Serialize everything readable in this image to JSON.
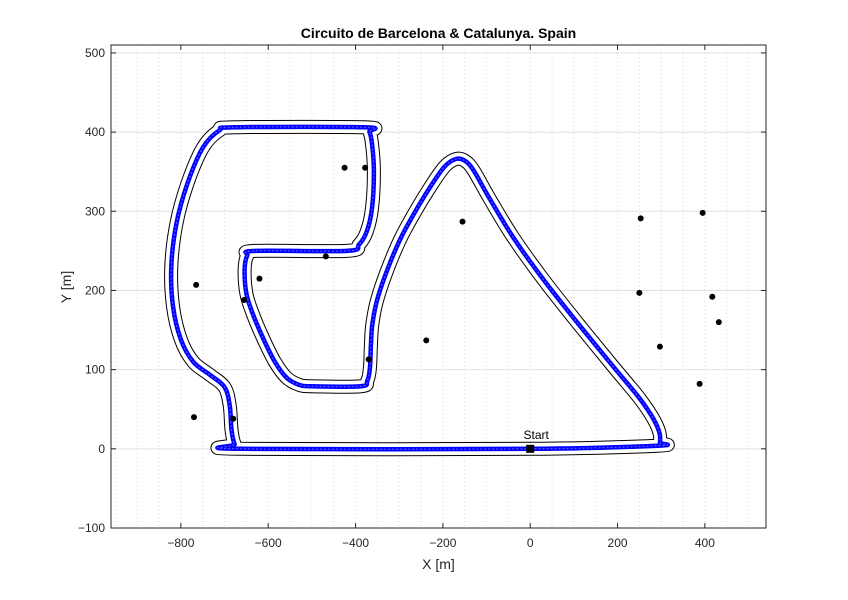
{
  "chart_data": {
    "type": "scatter",
    "title": "Circuito de Barcelona & Catalunya. Spain",
    "xlabel": "X [m]",
    "ylabel": "Y [m]",
    "xlim": [
      -960,
      540
    ],
    "ylim": [
      -100,
      510
    ],
    "x_ticks": [
      -800,
      -600,
      -400,
      -200,
      0,
      200,
      400
    ],
    "y_ticks": [
      -100,
      0,
      100,
      200,
      300,
      400,
      500
    ],
    "x_tick_labels": [
      "−800",
      "−600",
      "−400",
      "−200",
      "0",
      "200",
      "400"
    ],
    "y_tick_labels": [
      "−100",
      "0",
      "100",
      "200",
      "300",
      "400",
      "500"
    ],
    "grid": {
      "x": "dotted",
      "y": "solid",
      "x_minor_step": 50
    },
    "colors": {
      "centerline": "#0000ff",
      "boundary": "#000000",
      "points": "#000000",
      "grid": "#dcdcdc",
      "axes": "#262626"
    },
    "series": [
      {
        "role": "centerline",
        "style": "thick-blue-line",
        "track_half_width": 9,
        "points": [
          [
            0,
            0
          ],
          [
            -660,
            0
          ],
          [
            -685,
            5
          ],
          [
            -695,
            20
          ],
          [
            -700,
            45
          ],
          [
            -705,
            65
          ],
          [
            -730,
            85
          ],
          [
            -770,
            100
          ],
          [
            -810,
            125
          ],
          [
            -835,
            165
          ],
          [
            -845,
            220
          ],
          [
            -835,
            270
          ],
          [
            -805,
            330
          ],
          [
            -760,
            385
          ],
          [
            -710,
            405
          ],
          [
            -370,
            405
          ],
          [
            -362,
            398
          ],
          [
            -357,
            375
          ],
          [
            -362,
            330
          ],
          [
            -375,
            280
          ],
          [
            -395,
            258
          ],
          [
            -430,
            250
          ],
          [
            -630,
            250
          ],
          [
            -655,
            245
          ],
          [
            -662,
            220
          ],
          [
            -655,
            185
          ],
          [
            -620,
            140
          ],
          [
            -580,
            100
          ],
          [
            -550,
            85
          ],
          [
            -510,
            80
          ],
          [
            -380,
            80
          ],
          [
            -367,
            95
          ],
          [
            -363,
            120
          ],
          [
            -360,
            140
          ],
          [
            -358,
            165
          ],
          [
            -345,
            205
          ],
          [
            -300,
            260
          ],
          [
            -240,
            310
          ],
          [
            -190,
            355
          ],
          [
            -155,
            365
          ],
          [
            -125,
            355
          ],
          [
            -80,
            310
          ],
          [
            -20,
            255
          ],
          [
            50,
            205
          ],
          [
            140,
            145
          ],
          [
            220,
            95
          ],
          [
            268,
            65
          ],
          [
            300,
            40
          ],
          [
            315,
            20
          ],
          [
            305,
            8
          ]
        ]
      }
    ],
    "series_smooth_note": "",
    "centerline_points": [
      [
        0,
        0
      ],
      [
        -660,
        0
      ],
      [
        -676,
        5
      ],
      [
        -686,
        22
      ],
      [
        -690,
        52
      ],
      [
        -702,
        74
      ],
      [
        -735,
        90
      ],
      [
        -778,
        110
      ],
      [
        -808,
        140
      ],
      [
        -825,
        185
      ],
      [
        -828,
        240
      ],
      [
        -812,
        300
      ],
      [
        -780,
        355
      ],
      [
        -740,
        395
      ],
      [
        -700,
        408
      ],
      [
        -380,
        408
      ],
      [
        -368,
        402
      ],
      [
        -360,
        385
      ],
      [
        -357,
        345
      ],
      [
        -364,
        300
      ],
      [
        -380,
        268
      ],
      [
        -405,
        252
      ],
      [
        -445,
        248
      ],
      [
        -630,
        248
      ],
      [
        -650,
        242
      ],
      [
        -656,
        222
      ],
      [
        -650,
        190
      ],
      [
        -630,
        160
      ],
      [
        -600,
        130
      ],
      [
        -568,
        100
      ],
      [
        -538,
        84
      ],
      [
        -505,
        79
      ],
      [
        -385,
        79
      ],
      [
        -370,
        88
      ],
      [
        -365,
        110
      ],
      [
        -364,
        140
      ],
      [
        -358,
        170
      ],
      [
        -340,
        205
      ],
      [
        -310,
        245
      ],
      [
        -270,
        290
      ],
      [
        -225,
        335
      ],
      [
        -195,
        358
      ],
      [
        -168,
        367
      ],
      [
        -145,
        362
      ],
      [
        -120,
        345
      ],
      [
        -60,
        290
      ],
      [
        20,
        225
      ],
      [
        110,
        160
      ],
      [
        195,
        100
      ],
      [
        262,
        55
      ],
      [
        292,
        28
      ],
      [
        300,
        10
      ],
      [
        296,
        2
      ]
    ],
    "track_points": [
      [
        0,
        0
      ],
      [
        -663,
        0
      ],
      [
        -677,
        6
      ],
      [
        -684,
        24
      ],
      [
        -688,
        54
      ],
      [
        -700,
        78
      ],
      [
        -735,
        94
      ],
      [
        -772,
        110
      ],
      [
        -800,
        138
      ],
      [
        -818,
        180
      ],
      [
        -822,
        230
      ],
      [
        -810,
        285
      ],
      [
        -785,
        335
      ],
      [
        -750,
        380
      ],
      [
        -712,
        402
      ],
      [
        -676,
        406
      ],
      [
        -380,
        406
      ],
      [
        -368,
        400
      ],
      [
        -362,
        384
      ],
      [
        -358,
        350
      ],
      [
        -362,
        305
      ],
      [
        -374,
        275
      ],
      [
        -392,
        258
      ],
      [
        -420,
        250
      ],
      [
        -630,
        250
      ],
      [
        -648,
        244
      ],
      [
        -654,
        226
      ],
      [
        -650,
        196
      ],
      [
        -635,
        170
      ],
      [
        -612,
        140
      ],
      [
        -585,
        110
      ],
      [
        -558,
        90
      ],
      [
        -530,
        81
      ],
      [
        -500,
        79
      ],
      [
        -388,
        79
      ],
      [
        -373,
        86
      ],
      [
        -367,
        102
      ],
      [
        -365,
        128
      ],
      [
        -362,
        155
      ],
      [
        -352,
        185
      ],
      [
        -330,
        222
      ],
      [
        -300,
        262
      ],
      [
        -265,
        298
      ],
      [
        -225,
        334
      ],
      [
        -195,
        357
      ],
      [
        -170,
        366
      ],
      [
        -150,
        364
      ],
      [
        -130,
        352
      ],
      [
        -95,
        318
      ],
      [
        -40,
        268
      ],
      [
        30,
        214
      ],
      [
        110,
        158
      ],
      [
        190,
        104
      ],
      [
        250,
        64
      ],
      [
        282,
        38
      ],
      [
        296,
        20
      ],
      [
        297,
        8
      ],
      [
        292,
        4
      ]
    ],
    "points": [
      [
        -765,
        207
      ],
      [
        -770,
        40
      ],
      [
        -680,
        38
      ],
      [
        -655,
        188
      ],
      [
        -620,
        215
      ],
      [
        -468,
        243
      ],
      [
        -425,
        355
      ],
      [
        -378,
        355
      ],
      [
        -370,
        113
      ],
      [
        -238,
        137
      ],
      [
        -155,
        287
      ],
      [
        0,
        0
      ],
      [
        253,
        291
      ],
      [
        250,
        197
      ],
      [
        297,
        129
      ],
      [
        388,
        82
      ],
      [
        395,
        298
      ],
      [
        417,
        192
      ],
      [
        432,
        160
      ]
    ],
    "annotations": [
      {
        "text": "Start",
        "x": 0,
        "y": 0
      }
    ]
  }
}
